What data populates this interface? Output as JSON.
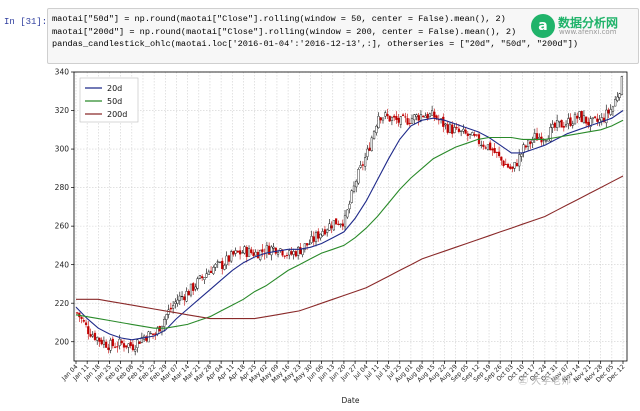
{
  "notebook": {
    "prompt": "In [31]:",
    "code_lines": [
      "maotai[\"50d\"] = np.round(maotai[\"Close\"].rolling(window = 50, center = False).mean(), 2)",
      "maotai[\"200d\"] = np.round(maotai[\"Close\"].rolling(window = 200, center = False).mean(), 2)",
      "",
      "pandas_candlestick_ohlc(maotai.loc['2016-01-04':'2016-12-13',:], otherseries = [\"20d\", \"50d\", \"200d\"])"
    ]
  },
  "logo": {
    "mark": "a",
    "name": "数据分析网",
    "url": "www.afenxi.com"
  },
  "watermark": "㊣ 大学老师",
  "chart_data": {
    "type": "candlestick",
    "xlabel": "Date",
    "ylim": [
      190,
      340
    ],
    "yticks": [
      200,
      220,
      240,
      260,
      280,
      300,
      320,
      340
    ],
    "xticks": [
      "Jan 04",
      "Jan 11",
      "Jan 18",
      "Jan 25",
      "Feb 01",
      "Feb 08",
      "Feb 15",
      "Feb 22",
      "Feb 29",
      "Mar 07",
      "Mar 14",
      "Mar 21",
      "Mar 28",
      "Apr 04",
      "Apr 11",
      "Apr 18",
      "Apr 25",
      "May 02",
      "May 09",
      "May 16",
      "May 23",
      "May 30",
      "Jun 06",
      "Jun 13",
      "Jun 20",
      "Jun 27",
      "Jul 04",
      "Jul 11",
      "Jul 18",
      "Jul 25",
      "Aug 01",
      "Aug 08",
      "Aug 15",
      "Aug 22",
      "Aug 29",
      "Sep 05",
      "Sep 12",
      "Sep 19",
      "Sep 26",
      "Oct 03",
      "Oct 10",
      "Oct 17",
      "Oct 24",
      "Oct 31",
      "Nov 07",
      "Nov 14",
      "Nov 21",
      "Nov 28",
      "Dec 05",
      "Dec 12"
    ],
    "grid": true,
    "legend_position": "top-left",
    "close_weekly": [
      215,
      206,
      201,
      198,
      199,
      198,
      203,
      204,
      214,
      222,
      226,
      232,
      238,
      240,
      245,
      247,
      246,
      248,
      249,
      245,
      248,
      252,
      258,
      262,
      263,
      284,
      298,
      318,
      316,
      314,
      316,
      318,
      317,
      312,
      309,
      307,
      304,
      301,
      294,
      289,
      300,
      306,
      307,
      312,
      314,
      317,
      313,
      315,
      322,
      338
    ],
    "candle_colors": {
      "up": "#000000",
      "down": "#c00000"
    },
    "series": [
      {
        "name": "20d",
        "color": "#1f2a8a",
        "values": [
          218,
          212,
          207,
          204,
          202,
          201,
          202,
          203,
          206,
          212,
          217,
          222,
          227,
          232,
          237,
          241,
          244,
          246,
          247,
          248,
          248,
          249,
          251,
          254,
          257,
          264,
          273,
          284,
          295,
          305,
          312,
          315,
          316,
          315,
          313,
          311,
          309,
          306,
          302,
          298,
          298,
          300,
          302,
          305,
          308,
          310,
          312,
          314,
          316,
          320
        ]
      },
      {
        "name": "50d",
        "color": "#2a8a2a",
        "values": [
          214,
          213,
          212,
          211,
          210,
          209,
          208,
          207,
          207,
          208,
          209,
          211,
          213,
          216,
          219,
          222,
          226,
          229,
          233,
          237,
          240,
          243,
          246,
          248,
          250,
          254,
          259,
          265,
          272,
          279,
          285,
          290,
          295,
          298,
          301,
          303,
          305,
          306,
          306,
          306,
          305,
          305,
          305,
          306,
          307,
          308,
          309,
          310,
          312,
          315
        ]
      },
      {
        "name": "200d",
        "color": "#8a2a2a",
        "values": [
          222,
          222,
          222,
          221,
          220,
          219,
          218,
          217,
          216,
          215,
          214,
          213,
          212,
          212,
          212,
          212,
          212,
          213,
          214,
          215,
          216,
          218,
          220,
          222,
          224,
          226,
          228,
          231,
          234,
          237,
          240,
          243,
          245,
          247,
          249,
          251,
          253,
          255,
          257,
          259,
          261,
          263,
          265,
          268,
          271,
          274,
          277,
          280,
          283,
          286
        ]
      }
    ]
  }
}
